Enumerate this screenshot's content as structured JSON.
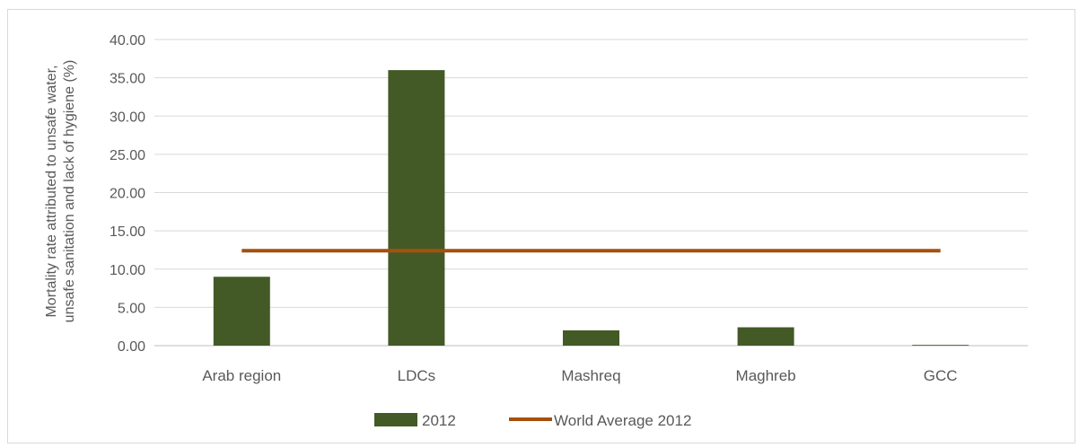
{
  "chart_data": {
    "type": "bar",
    "title": "",
    "ylabel_lines": [
      "Mortality rate attributed to unsafe water,",
      "unsafe sanitation and lack of hygiene (%)"
    ],
    "xlabel": "",
    "categories": [
      "Arab region",
      "LDCs",
      "Mashreq",
      "Maghreb",
      "GCC"
    ],
    "series": [
      {
        "name": "2012",
        "type": "bar",
        "color": "#435a26",
        "values": [
          9.0,
          36.0,
          2.0,
          2.4,
          0.1
        ]
      },
      {
        "name": "World Average 2012",
        "type": "line",
        "color": "#a5500e",
        "values": [
          12.4,
          12.4,
          12.4,
          12.4,
          12.4
        ]
      }
    ],
    "ylim": [
      0,
      40
    ],
    "yticks": [
      "0.00",
      "5.00",
      "10.00",
      "15.00",
      "20.00",
      "25.00",
      "30.00",
      "35.00",
      "40.00"
    ],
    "grid": true,
    "legend_position": "bottom"
  }
}
